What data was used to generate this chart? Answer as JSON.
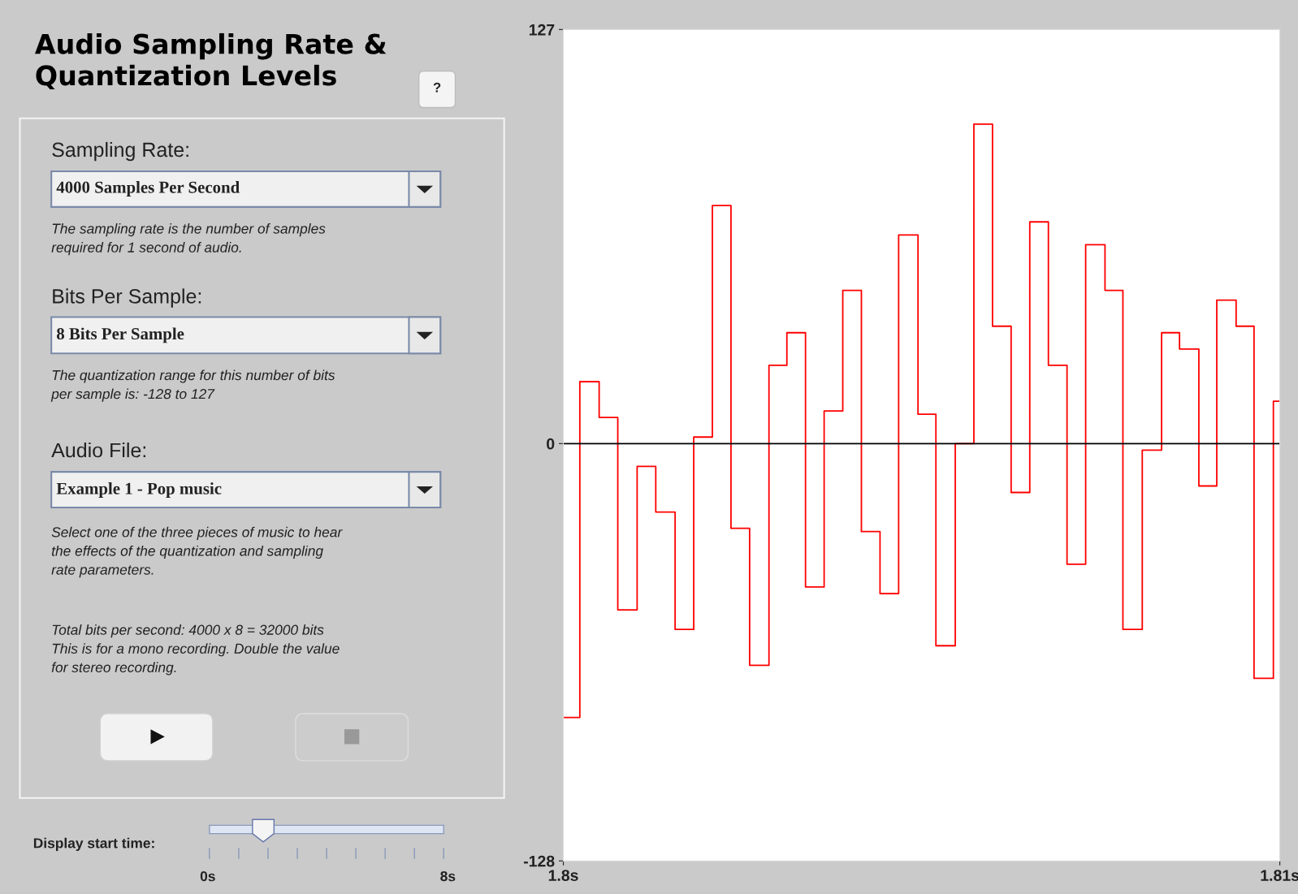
{
  "chart_data": [
    {
      "type": "other",
      "title": "Audio Sampling Rate &\nQuantization Levels",
      "annotations": [
        "?",
        "Sampling Rate:",
        "4000 Samples Per Second",
        "The sampling rate is the number of samples\nrequired for 1 second of audio.",
        "Bits Per Sample:",
        "8 Bits Per Sample",
        "The quantization range for this number of bits\nper sample is: -128 to 127",
        "Audio File:",
        "Example 1 - Pop music",
        "Select one of the three pieces of music to hear\nthe effects of the quantization and sampling\nrate parameters.",
        "Total bits per second: 4000 x 8 = 32000 bits\nThis is for a mono recording. Double the value\nfor stereo recording.",
        "Display start time:",
        "0s",
        "8s"
      ]
    },
    {
      "type": "step",
      "x": [
        1.8,
        1.80023,
        1.8005,
        1.80076,
        1.80103,
        1.80129,
        1.80156,
        1.80182,
        1.80208,
        1.80234,
        1.8026,
        1.80287,
        1.80312,
        1.80338,
        1.80364,
        1.8039,
        1.80416,
        1.80442,
        1.80468,
        1.80495,
        1.8052,
        1.80547,
        1.80573,
        1.80599,
        1.80625,
        1.80651,
        1.80677,
        1.80703,
        1.80729,
        1.80756,
        1.80781,
        1.80808,
        1.80835,
        1.8086,
        1.80887,
        1.80912,
        1.80939,
        1.80964,
        1.80991,
        1.81
      ],
      "series": [
        {
          "color": "#ff0000",
          "values": [
            -84,
            19,
            8,
            -51,
            -7,
            -21,
            -57,
            2,
            73,
            -26,
            -68,
            24,
            34,
            -44,
            10,
            47,
            -27,
            -46,
            64,
            9,
            -62,
            0,
            98,
            36,
            -15,
            68,
            24,
            -37,
            61,
            47,
            -57,
            -2,
            34,
            29,
            -13,
            44,
            36,
            -72,
            13,
            13
          ]
        }
      ],
      "xlim": [
        1.8,
        1.81
      ],
      "ylim": [
        -128,
        127
      ],
      "xticks": [
        {
          "value": 1.8,
          "label": "1.8s"
        },
        {
          "value": 1.81,
          "label": "1.81s"
        }
      ],
      "yticks": [
        -128,
        0,
        127
      ],
      "ref_lines": [
        {
          "axis": "y",
          "value": 0,
          "color": "#000000"
        }
      ]
    }
  ]
}
